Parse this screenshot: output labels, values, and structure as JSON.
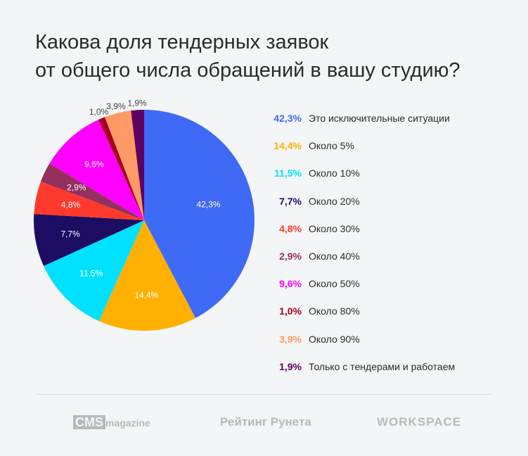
{
  "title_lines": [
    "Какова доля тендерных заявок",
    "от общего числа обращений в вашу студию?"
  ],
  "chart_data": {
    "type": "pie",
    "title": "Какова доля тендерных заявок от общего числа обращений в вашу студию?",
    "unit": "%",
    "start": "top",
    "direction": "clockwise",
    "slices": [
      {
        "label": "Это исключительные ситуации",
        "value": 42.3,
        "text": "42,3%",
        "color": "#3f6af5"
      },
      {
        "label": "Около 5%",
        "value": 14.4,
        "text": "14,4%",
        "color": "#ffb000"
      },
      {
        "label": "Около 10%",
        "value": 11.5,
        "text": "11,5%",
        "color": "#00e1ff"
      },
      {
        "label": "Около 20%",
        "value": 7.7,
        "text": "7,7%",
        "color": "#1c0d63"
      },
      {
        "label": "Около 30%",
        "value": 4.8,
        "text": "4,8%",
        "color": "#ff3a2c"
      },
      {
        "label": "Около 40%",
        "value": 2.9,
        "text": "2,9%",
        "color": "#93305e"
      },
      {
        "label": "Около 50%",
        "value": 9.6,
        "text": "9,6%",
        "color": "#ff00ff"
      },
      {
        "label": "Около 80%",
        "value": 1.0,
        "text": "1,0%",
        "color": "#a50020"
      },
      {
        "label": "Около 90%",
        "value": 3.9,
        "text": "3,9%",
        "color": "#ff9966"
      },
      {
        "label": "Только с тендерами и работаем",
        "value": 1.9,
        "text": "1,9%",
        "color": "#5e0060"
      }
    ],
    "legend_position": "right"
  },
  "footer": {
    "cms_box": "CMS",
    "cms_text": "magazine",
    "rating": "Рейтинг Рунета",
    "workspace": "WORKSPACE"
  }
}
